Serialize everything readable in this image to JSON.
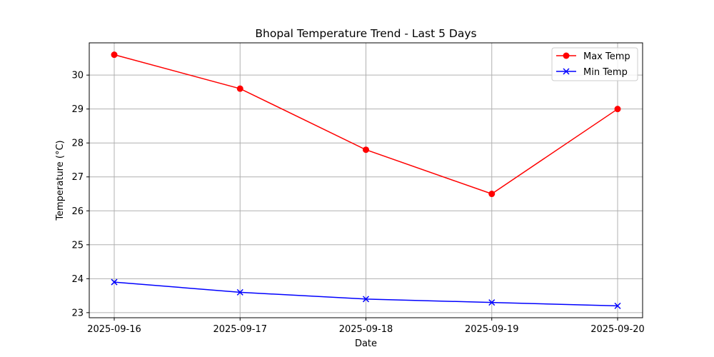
{
  "chart_data": {
    "type": "line",
    "title": "Bhopal Temperature Trend - Last 5 Days",
    "xlabel": "Date",
    "ylabel": "Temperature (°C)",
    "categories": [
      "2025-09-16",
      "2025-09-17",
      "2025-09-18",
      "2025-09-19",
      "2025-09-20"
    ],
    "ylim": [
      22.85,
      30.95
    ],
    "yticks": [
      23,
      24,
      25,
      26,
      27,
      28,
      29,
      30
    ],
    "grid": true,
    "legend_position": "top-right",
    "series": [
      {
        "name": "Max Temp",
        "values": [
          30.6,
          29.6,
          27.8,
          26.5,
          29.0
        ],
        "color": "#ff0000",
        "marker": "circle"
      },
      {
        "name": "Min Temp",
        "values": [
          23.9,
          23.6,
          23.4,
          23.3,
          23.2
        ],
        "color": "#0000ff",
        "marker": "x"
      }
    ]
  }
}
